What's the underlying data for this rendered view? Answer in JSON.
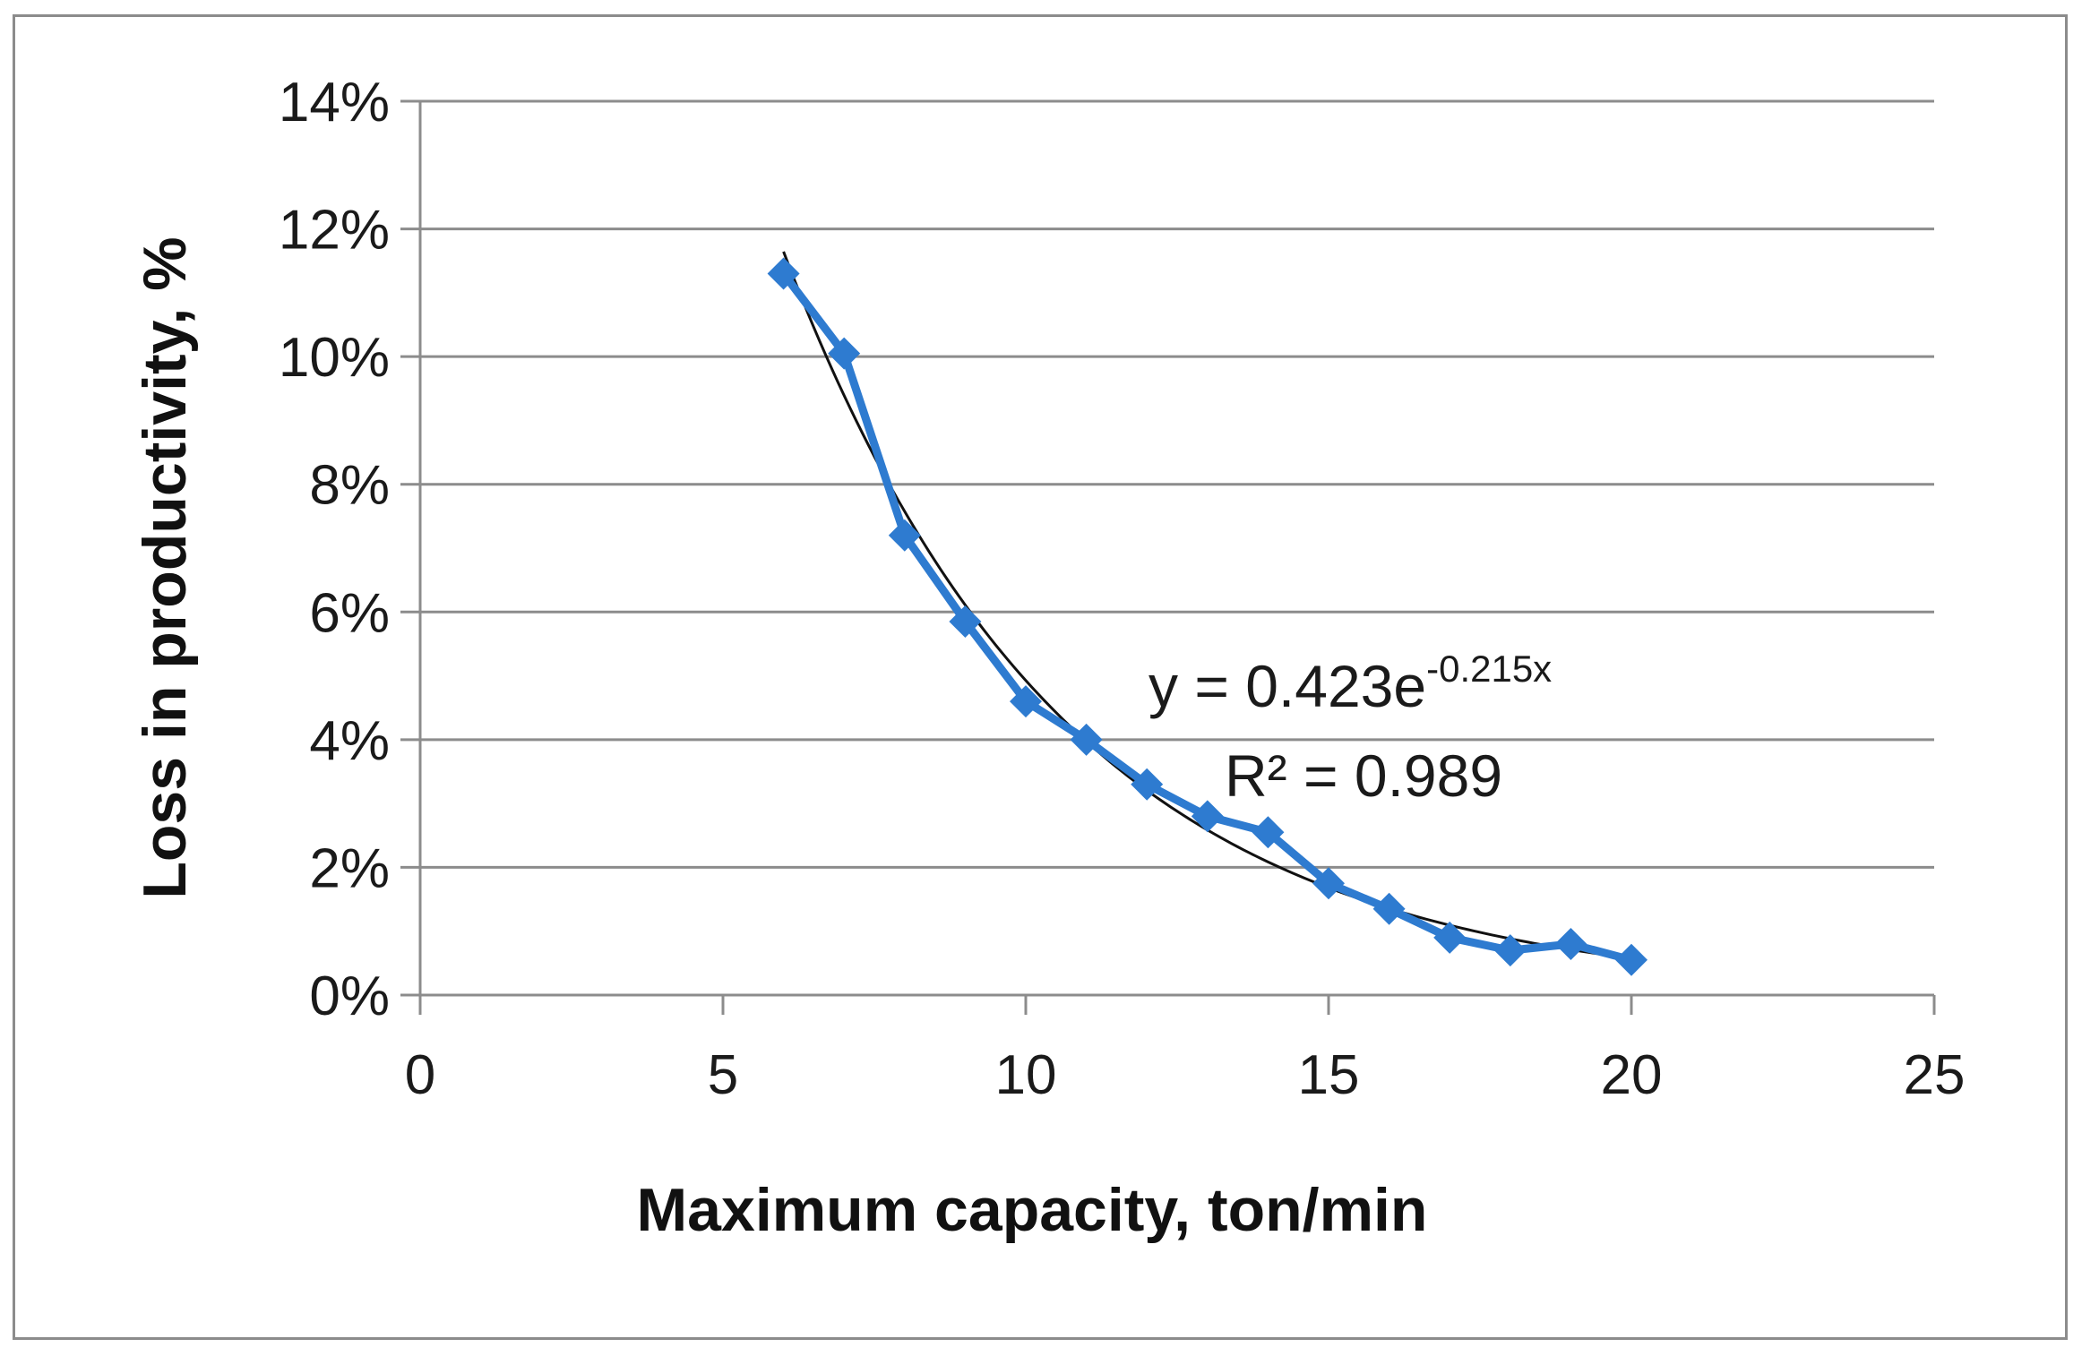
{
  "chart_data": {
    "type": "scatter",
    "title": "",
    "xlabel": "Maximum capacity, ton/min",
    "ylabel": "Loss in productivity, %",
    "xlim": [
      0,
      25
    ],
    "ylim": [
      0,
      0.14
    ],
    "x_ticks": [
      0,
      5,
      10,
      15,
      20,
      25
    ],
    "x_tick_labels": [
      "0",
      "5",
      "10",
      "15",
      "20",
      "25"
    ],
    "y_ticks": [
      0,
      0.02,
      0.04,
      0.06,
      0.08,
      0.1,
      0.12,
      0.14
    ],
    "y_tick_labels": [
      "0%",
      "2%",
      "4%",
      "6%",
      "8%",
      "10%",
      "12%",
      "14%"
    ],
    "grid": "horizontal",
    "series": [
      {
        "name": "Loss in productivity",
        "marker": "diamond",
        "color": "#2e7bd0",
        "x": [
          6,
          7,
          8,
          9,
          10,
          11,
          12,
          13,
          14,
          15,
          16,
          17,
          18,
          19,
          20
        ],
        "y": [
          0.113,
          0.1005,
          0.072,
          0.0585,
          0.046,
          0.04,
          0.033,
          0.028,
          0.0255,
          0.0175,
          0.0135,
          0.009,
          0.007,
          0.008,
          0.0055
        ]
      }
    ],
    "trendline": {
      "type": "exponential",
      "a": 0.423,
      "b": -0.215,
      "x_range": [
        6,
        20
      ],
      "color": "#111111",
      "equation_main": "y = 0.423e",
      "equation_exponent": "-0.215x",
      "r_squared_label": "R² = 0.989"
    }
  }
}
